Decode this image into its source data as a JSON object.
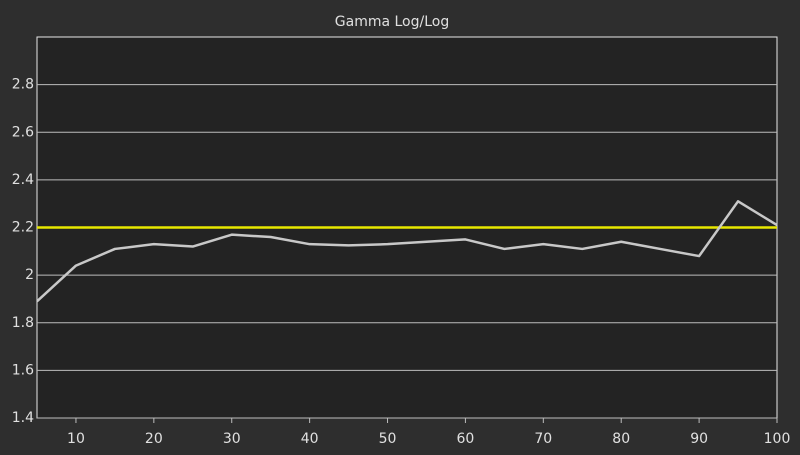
{
  "chart_data": {
    "type": "line",
    "title": "Gamma Log/Log",
    "x": [
      5,
      10,
      15,
      20,
      25,
      30,
      35,
      40,
      45,
      50,
      55,
      60,
      65,
      70,
      75,
      80,
      85,
      90,
      95,
      100
    ],
    "series": [
      {
        "color": "#c8c8c8",
        "values": [
          1.89,
          2.04,
          2.11,
          2.13,
          2.12,
          2.17,
          2.16,
          2.13,
          2.125,
          2.13,
          2.14,
          2.15,
          2.11,
          2.13,
          2.11,
          2.14,
          2.11,
          2.08,
          2.31,
          2.21
        ]
      }
    ],
    "reference_line": {
      "value": 2.2,
      "color": "#e8e800"
    },
    "xlim": [
      5,
      100
    ],
    "xticks": [
      10,
      20,
      30,
      40,
      50,
      60,
      70,
      80,
      90,
      100
    ],
    "ylim": [
      1.4,
      3.0
    ],
    "yticks": [
      1.4,
      1.6,
      1.8,
      2,
      2.2,
      2.4,
      2.6,
      2.8
    ],
    "grid": true
  }
}
